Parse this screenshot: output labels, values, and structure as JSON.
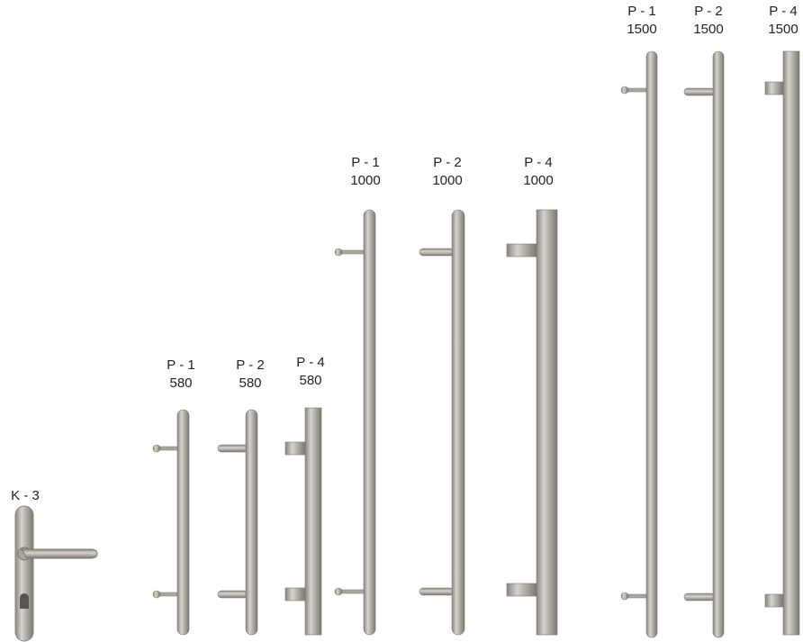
{
  "items": [
    {
      "model": "K - 3"
    },
    {
      "model": "P - 1",
      "size": 580
    },
    {
      "model": "P - 2",
      "size": 580
    },
    {
      "model": "P - 4",
      "size": 580
    },
    {
      "model": "P - 1",
      "size": 1000
    },
    {
      "model": "P - 2",
      "size": 1000
    },
    {
      "model": "P - 4",
      "size": 1000
    },
    {
      "model": "P - 1",
      "size": 1500
    },
    {
      "model": "P - 2",
      "size": 1500
    },
    {
      "model": "P - 4",
      "size": 1500
    }
  ]
}
